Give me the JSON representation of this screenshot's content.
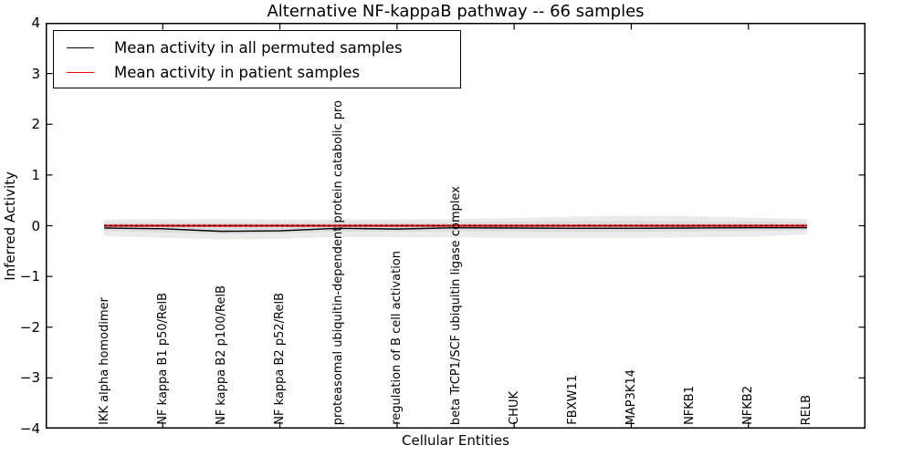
{
  "title": "Alternative NF-kappaB pathway -- 66 samples",
  "axes": {
    "ylabel": "Inferred Activity",
    "xlabel": "Cellular Entities",
    "yticks": [
      "4",
      "3",
      "2",
      "1",
      "0",
      "−1",
      "−2",
      "−3",
      "−4"
    ]
  },
  "legend": {
    "items": [
      {
        "label": "Mean activity in all permuted samples",
        "color": "#000000"
      },
      {
        "label": "Mean activity in patient samples",
        "color": "#ff0000"
      }
    ]
  },
  "colors": {
    "band_outer": "#ebebeb",
    "band_inner": "#dcdcdc",
    "permuted_line": "#000000",
    "patient_line": "#ff0000",
    "zero_reference": "#000000",
    "frame": "#000000",
    "background": "#ffffff"
  },
  "chart_data": {
    "type": "line",
    "title": "Alternative NF-kappaB pathway -- 66 samples",
    "xlabel": "Cellular Entities",
    "ylabel": "Inferred Activity",
    "ylim": [
      -4,
      4
    ],
    "xunits": 14,
    "grid": false,
    "legend_position": "upper left",
    "yticks": [
      4,
      3,
      2,
      1,
      0,
      -1,
      -2,
      -3,
      -4
    ],
    "x_major_tick_units": [
      2,
      4,
      6,
      8,
      10,
      12
    ],
    "categories": [
      "IKK alpha homodimer",
      "NF kappa B1 p50/RelB",
      "NF kappa B2 p100/RelB",
      "NF kappa B2 p52/RelB",
      "proteasomal ubiquitin-dependent protein catabolic pro",
      "regulation of B cell activation",
      "beta TrCP1/SCF ubiquitin ligase complex",
      "CHUK",
      "FBXW11",
      "MAP3K14",
      "NFKB1",
      "NFKB2",
      "RELB"
    ],
    "series": [
      {
        "key": "mean-permuted-line",
        "name": "Mean activity in all permuted samples",
        "color": "#000000",
        "style": "solid",
        "values": [
          -0.045,
          -0.06,
          -0.11,
          -0.1,
          -0.05,
          -0.065,
          -0.04,
          -0.045,
          -0.05,
          -0.05,
          -0.045,
          -0.04,
          -0.04
        ]
      },
      {
        "key": "mean-patient-line",
        "name": "Mean activity in patient samples",
        "color": "#ff0000",
        "style": "solid",
        "values": [
          0,
          0,
          0,
          0,
          0,
          0,
          0,
          0,
          0,
          0,
          0,
          0,
          0
        ]
      },
      {
        "key": "zero-reference-dotted-line",
        "name": "zero reference",
        "color": "#000000",
        "style": "dotted",
        "values": [
          0,
          0,
          0,
          0,
          0,
          0,
          0,
          0,
          0,
          0,
          0,
          0,
          0
        ]
      }
    ],
    "bands": [
      {
        "name": "permuted-spread-outer-band",
        "color": "#ebebeb",
        "upper": [
          0.12,
          0.13,
          0.13,
          0.12,
          0.12,
          0.12,
          0.13,
          0.15,
          0.18,
          0.2,
          0.19,
          0.16,
          0.13
        ],
        "lower": [
          -0.2,
          -0.24,
          -0.27,
          -0.26,
          -0.22,
          -0.23,
          -0.23,
          -0.24,
          -0.24,
          -0.24,
          -0.23,
          -0.22,
          -0.17
        ]
      },
      {
        "name": "permuted-spread-inner-band",
        "color": "#dcdcdc",
        "upper": [
          0.06,
          0.07,
          0.06,
          0.06,
          0.07,
          0.06,
          0.07,
          0.08,
          0.09,
          0.09,
          0.08,
          0.08,
          0.07
        ],
        "lower": [
          -0.1,
          -0.13,
          -0.16,
          -0.15,
          -0.11,
          -0.12,
          -0.11,
          -0.11,
          -0.12,
          -0.12,
          -0.11,
          -0.1,
          -0.09
        ]
      }
    ]
  }
}
